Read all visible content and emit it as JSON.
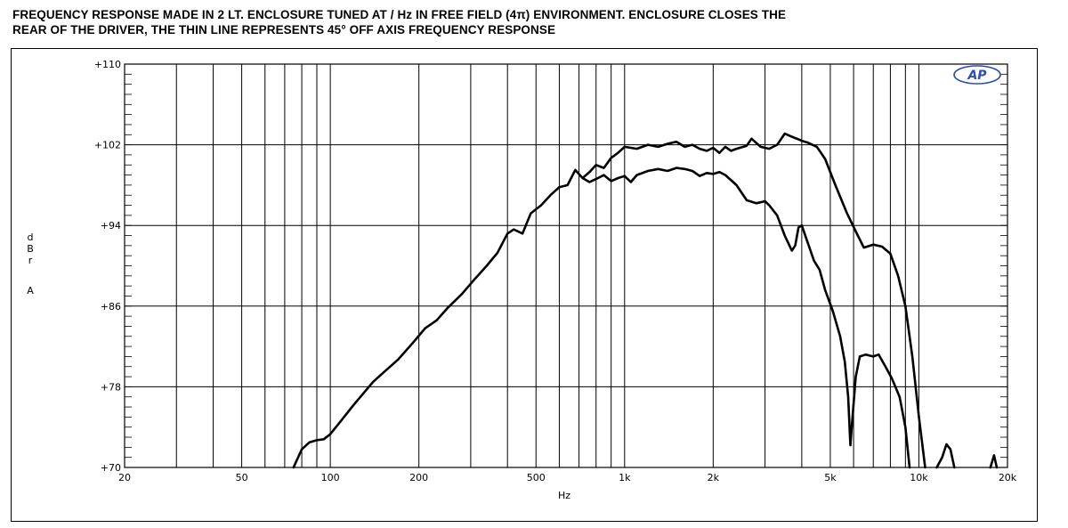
{
  "caption": {
    "line1": "FREQUENCY RESPONSE MADE IN 2 LT. ENCLOSURE TUNED AT / Hz IN FREE FIELD (4π) ENVIRONMENT. ENCLOSURE CLOSES THE",
    "line2": "REAR OF THE DRIVER, THE THIN LINE REPRESENTS 45° OFF AXIS FREQUENCY RESPONSE"
  },
  "logo": {
    "text": "AP",
    "color": "#2a4fb0"
  },
  "chart_data": {
    "type": "line",
    "xscale": "log",
    "xlim": [
      20,
      20000
    ],
    "ylim": [
      70,
      110
    ],
    "xlabel": "Hz",
    "ylabel": [
      "d",
      "B",
      "r",
      "A"
    ],
    "x_ticks": [
      {
        "value": 20,
        "label": "20"
      },
      {
        "value": 50,
        "label": "50"
      },
      {
        "value": 100,
        "label": "100"
      },
      {
        "value": 200,
        "label": "200"
      },
      {
        "value": 500,
        "label": "500"
      },
      {
        "value": 1000,
        "label": "1k"
      },
      {
        "value": 2000,
        "label": "2k"
      },
      {
        "value": 5000,
        "label": "5k"
      },
      {
        "value": 10000,
        "label": "10k"
      },
      {
        "value": 20000,
        "label": "20k"
      }
    ],
    "y_ticks": [
      {
        "value": 70,
        "label": "+70"
      },
      {
        "value": 78,
        "label": "+78"
      },
      {
        "value": 86,
        "label": "+86"
      },
      {
        "value": 94,
        "label": "+94"
      },
      {
        "value": 102,
        "label": "+102"
      },
      {
        "value": 110,
        "label": "+110"
      }
    ],
    "grid": true,
    "series": [
      {
        "points": [
          [
            75,
            70
          ],
          [
            80,
            71.8
          ],
          [
            85,
            72.5
          ],
          [
            90,
            72.7
          ],
          [
            95,
            72.8
          ],
          [
            100,
            73.3
          ],
          [
            110,
            74.8
          ],
          [
            120,
            76.2
          ],
          [
            130,
            77.4
          ],
          [
            140,
            78.5
          ],
          [
            150,
            79.3
          ],
          [
            170,
            80.7
          ],
          [
            190,
            82.3
          ],
          [
            210,
            83.8
          ],
          [
            230,
            84.6
          ],
          [
            250,
            85.8
          ],
          [
            280,
            87.2
          ],
          [
            310,
            88.7
          ],
          [
            340,
            90.0
          ],
          [
            370,
            91.3
          ],
          [
            400,
            93.2
          ],
          [
            420,
            93.6
          ],
          [
            450,
            93.2
          ],
          [
            480,
            95.2
          ],
          [
            520,
            96.0
          ],
          [
            560,
            97.0
          ],
          [
            600,
            97.8
          ],
          [
            640,
            98.0
          ],
          [
            680,
            99.5
          ],
          [
            720,
            98.7
          ],
          [
            760,
            99.3
          ],
          [
            800,
            100.0
          ],
          [
            850,
            99.7
          ],
          [
            900,
            100.7
          ],
          [
            950,
            101.2
          ],
          [
            1000,
            101.8
          ],
          [
            1100,
            101.6
          ],
          [
            1200,
            102.0
          ],
          [
            1300,
            101.8
          ],
          [
            1400,
            102.1
          ],
          [
            1500,
            102.3
          ],
          [
            1600,
            101.8
          ],
          [
            1700,
            102.0
          ],
          [
            1800,
            101.6
          ],
          [
            1900,
            101.4
          ],
          [
            2000,
            101.7
          ],
          [
            2100,
            101.2
          ],
          [
            2200,
            101.8
          ],
          [
            2300,
            101.4
          ],
          [
            2400,
            101.6
          ],
          [
            2600,
            101.9
          ],
          [
            2700,
            102.6
          ],
          [
            2900,
            101.8
          ],
          [
            3100,
            101.6
          ],
          [
            3300,
            102.0
          ],
          [
            3500,
            103.1
          ],
          [
            3700,
            102.8
          ],
          [
            4000,
            102.4
          ],
          [
            4200,
            102.2
          ],
          [
            4500,
            101.8
          ],
          [
            4800,
            100.6
          ],
          [
            5200,
            98.0
          ],
          [
            5700,
            95.2
          ],
          [
            6200,
            93.0
          ],
          [
            6500,
            91.8
          ],
          [
            7000,
            92.1
          ],
          [
            7500,
            91.9
          ],
          [
            8000,
            91.2
          ],
          [
            8500,
            89.0
          ],
          [
            9000,
            86.0
          ],
          [
            9500,
            81.0
          ],
          [
            10000,
            75.0
          ],
          [
            10500,
            70.0
          ]
        ]
      },
      {
        "points": [
          [
            720,
            98.7
          ],
          [
            760,
            98.3
          ],
          [
            800,
            98.6
          ],
          [
            850,
            99.0
          ],
          [
            900,
            98.4
          ],
          [
            950,
            98.7
          ],
          [
            1000,
            98.9
          ],
          [
            1050,
            98.3
          ],
          [
            1100,
            99.0
          ],
          [
            1200,
            99.4
          ],
          [
            1300,
            99.6
          ],
          [
            1400,
            99.4
          ],
          [
            1500,
            99.7
          ],
          [
            1600,
            99.6
          ],
          [
            1700,
            99.4
          ],
          [
            1800,
            98.9
          ],
          [
            1900,
            99.2
          ],
          [
            2000,
            99.1
          ],
          [
            2100,
            99.3
          ],
          [
            2200,
            99.0
          ],
          [
            2400,
            98.0
          ],
          [
            2600,
            96.5
          ],
          [
            2800,
            96.2
          ],
          [
            3000,
            96.4
          ],
          [
            3100,
            96.0
          ],
          [
            3300,
            95.0
          ],
          [
            3500,
            93.0
          ],
          [
            3700,
            91.5
          ],
          [
            3800,
            92.0
          ],
          [
            3900,
            93.8
          ],
          [
            4000,
            94.0
          ],
          [
            4200,
            92.2
          ],
          [
            4400,
            90.5
          ],
          [
            4600,
            89.6
          ],
          [
            4800,
            87.6
          ],
          [
            5100,
            85.5
          ],
          [
            5400,
            83.0
          ],
          [
            5600,
            80.5
          ],
          [
            5750,
            77.0
          ],
          [
            5850,
            72.2
          ],
          [
            5950,
            75.0
          ],
          [
            6100,
            79.0
          ],
          [
            6300,
            81.0
          ],
          [
            6600,
            81.2
          ],
          [
            7000,
            81.0
          ],
          [
            7300,
            81.2
          ],
          [
            7700,
            80.0
          ],
          [
            8100,
            78.8
          ],
          [
            8600,
            77.0
          ],
          [
            9000,
            74.0
          ],
          [
            9300,
            70.0
          ]
        ]
      },
      {
        "points": [
          [
            11500,
            70.0
          ],
          [
            12000,
            71.0
          ],
          [
            12400,
            72.3
          ],
          [
            12800,
            71.8
          ],
          [
            13200,
            70.0
          ]
        ]
      },
      {
        "points": [
          [
            17500,
            70.0
          ],
          [
            18000,
            71.2
          ],
          [
            18400,
            70.0
          ]
        ]
      }
    ]
  }
}
